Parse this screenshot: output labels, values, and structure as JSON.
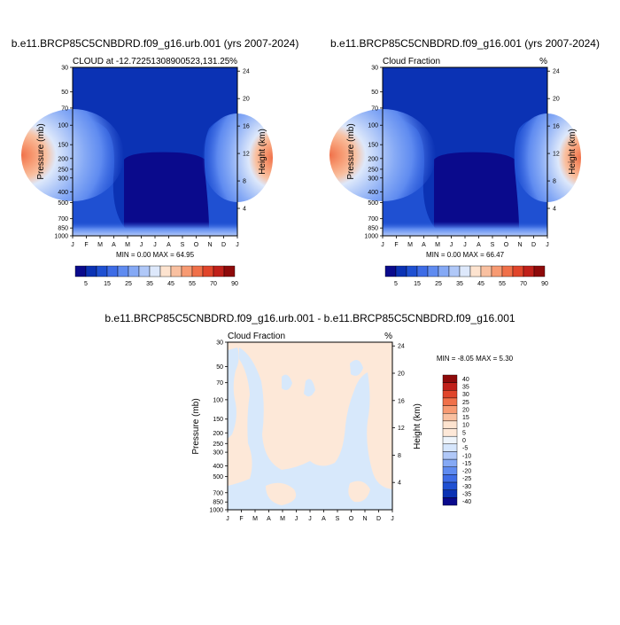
{
  "chart_data": [
    {
      "type": "heatmap",
      "title": "b.e11.BRCP85C5CNBDRD.f09_g16.urb.001 (yrs 2007-2024)",
      "subtitle_left": "CLOUD at -12.72251308900523,131.25",
      "subtitle_right": "%",
      "xlabel": "",
      "ylabel": "Pressure (mb)",
      "ylabel_right": "Height (km)",
      "x_ticks": [
        "J",
        "F",
        "M",
        "A",
        "M",
        "J",
        "J",
        "A",
        "S",
        "O",
        "N",
        "D",
        "J"
      ],
      "y_ticks": [
        "30",
        "50",
        "70",
        "100",
        "150",
        "200",
        "250",
        "300",
        "400",
        "500",
        "700",
        "850",
        "1000"
      ],
      "y_ticks_right": [
        "24",
        "20",
        "16",
        "12",
        "8",
        "4"
      ],
      "minmax_text": "MIN =   0.00 MAX =  64.95",
      "colorbar_labels": [
        "5",
        "15",
        "25",
        "35",
        "45",
        "55",
        "70",
        "90"
      ],
      "ylim": [
        1000,
        30
      ],
      "log_y": true
    },
    {
      "type": "heatmap",
      "title": "b.e11.BRCP85C5CNBDRD.f09_g16.001 (yrs 2007-2024)",
      "subtitle_left": "Cloud Fraction",
      "subtitle_right": "%",
      "xlabel": "",
      "ylabel": "Pressure (mb)",
      "ylabel_right": "Height (km)",
      "x_ticks": [
        "J",
        "F",
        "M",
        "A",
        "M",
        "J",
        "J",
        "A",
        "S",
        "O",
        "N",
        "D",
        "J"
      ],
      "y_ticks": [
        "30",
        "50",
        "70",
        "100",
        "150",
        "200",
        "250",
        "300",
        "400",
        "500",
        "700",
        "850",
        "1000"
      ],
      "y_ticks_right": [
        "24",
        "20",
        "16",
        "12",
        "8",
        "4"
      ],
      "minmax_text": "MIN =   0.00 MAX =  66.47",
      "colorbar_labels": [
        "5",
        "15",
        "25",
        "35",
        "45",
        "55",
        "70",
        "90"
      ],
      "ylim": [
        1000,
        30
      ],
      "log_y": true
    },
    {
      "type": "heatmap",
      "title": "b.e11.BRCP85C5CNBDRD.f09_g16.urb.001 - b.e11.BRCP85C5CNBDRD.f09_g16.001",
      "subtitle_left": "Cloud Fraction",
      "subtitle_right": "%",
      "xlabel": "",
      "ylabel": "Pressure (mb)",
      "ylabel_right": "Height (km)",
      "x_ticks": [
        "J",
        "F",
        "M",
        "A",
        "M",
        "J",
        "J",
        "A",
        "S",
        "O",
        "N",
        "D",
        "J"
      ],
      "y_ticks": [
        "30",
        "50",
        "70",
        "100",
        "150",
        "200",
        "250",
        "300",
        "400",
        "500",
        "700",
        "850",
        "1000"
      ],
      "y_ticks_right": [
        "24",
        "20",
        "16",
        "12",
        "8",
        "4"
      ],
      "minmax_text": "MIN = -8.05 MAX =   5.30",
      "colorbar_labels": [
        "40",
        "35",
        "30",
        "25",
        "20",
        "15",
        "10",
        "5",
        "0",
        "-5",
        "-10",
        "-15",
        "-20",
        "-25",
        "-30",
        "-35",
        "-40"
      ],
      "ylim": [
        1000,
        30
      ],
      "log_y": true
    }
  ],
  "colors": {
    "abs_scale": [
      "#0a0a8c",
      "#0b32b4",
      "#1f50d2",
      "#3e6ce6",
      "#5f8bf0",
      "#85a9f5",
      "#b0c8f8",
      "#dde8fb",
      "#fde3cf",
      "#f9c0a0",
      "#f79a72",
      "#f07049",
      "#e0452b",
      "#c0201a",
      "#8e0a0a"
    ],
    "diff_scale": [
      "#8e0a0a",
      "#c0201a",
      "#e0452b",
      "#f07049",
      "#f79a72",
      "#f9c0a0",
      "#fde3cf",
      "#fde8d8",
      "#eef4fb",
      "#d6e6fc",
      "#b0c8f8",
      "#85a9f5",
      "#5f8bf0",
      "#3e6ce6",
      "#1f50d2",
      "#0b32b4",
      "#0a0a8c"
    ],
    "diff_pos": "#fde8d8",
    "diff_neg": "#d7e8fb"
  }
}
